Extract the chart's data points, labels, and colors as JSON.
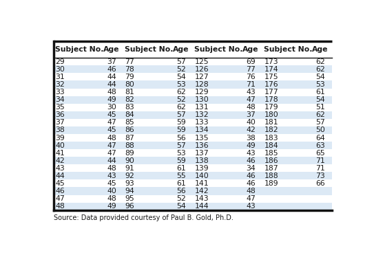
{
  "columns": [
    "Subject No.",
    "Age",
    "Subject No.",
    "Age",
    "Subject No.",
    "Age",
    "Subject No.",
    "Age"
  ],
  "rows": [
    [
      "29",
      "37",
      "77",
      "57",
      "125",
      "69",
      "173",
      "62"
    ],
    [
      "30",
      "46",
      "78",
      "52",
      "126",
      "77",
      "174",
      "62"
    ],
    [
      "31",
      "44",
      "79",
      "54",
      "127",
      "76",
      "175",
      "54"
    ],
    [
      "32",
      "44",
      "80",
      "53",
      "128",
      "71",
      "176",
      "53"
    ],
    [
      "33",
      "48",
      "81",
      "62",
      "129",
      "43",
      "177",
      "61"
    ],
    [
      "34",
      "49",
      "82",
      "52",
      "130",
      "47",
      "178",
      "54"
    ],
    [
      "35",
      "30",
      "83",
      "62",
      "131",
      "48",
      "179",
      "51"
    ],
    [
      "36",
      "45",
      "84",
      "57",
      "132",
      "37",
      "180",
      "62"
    ],
    [
      "37",
      "47",
      "85",
      "59",
      "133",
      "40",
      "181",
      "57"
    ],
    [
      "38",
      "45",
      "86",
      "59",
      "134",
      "42",
      "182",
      "50"
    ],
    [
      "39",
      "48",
      "87",
      "56",
      "135",
      "38",
      "183",
      "64"
    ],
    [
      "40",
      "47",
      "88",
      "57",
      "136",
      "49",
      "184",
      "63"
    ],
    [
      "41",
      "47",
      "89",
      "53",
      "137",
      "43",
      "185",
      "65"
    ],
    [
      "42",
      "44",
      "90",
      "59",
      "138",
      "46",
      "186",
      "71"
    ],
    [
      "43",
      "48",
      "91",
      "61",
      "139",
      "34",
      "187",
      "71"
    ],
    [
      "44",
      "43",
      "92",
      "55",
      "140",
      "46",
      "188",
      "73"
    ],
    [
      "45",
      "45",
      "93",
      "61",
      "141",
      "46",
      "189",
      "66"
    ],
    [
      "46",
      "40",
      "94",
      "56",
      "142",
      "48",
      "",
      ""
    ],
    [
      "47",
      "48",
      "95",
      "52",
      "143",
      "47",
      "",
      ""
    ],
    [
      "48",
      "49",
      "96",
      "54",
      "144",
      "43",
      "",
      ""
    ]
  ],
  "footer": "Source: Data provided courtesy of Paul B. Gold, Ph.D.",
  "row_color_odd": "#ffffff",
  "row_color_even": "#dce9f5",
  "text_color": "#1a1a1a",
  "border_thick": 2.5,
  "border_thin": 1.0,
  "header_fontsize": 7.8,
  "cell_fontsize": 7.8,
  "footer_fontsize": 7.0,
  "col_widths_raw": [
    1.55,
    0.8,
    1.55,
    0.8,
    1.55,
    0.8,
    1.55,
    0.8
  ],
  "figwidth": 5.43,
  "figheight": 3.87,
  "dpi": 100
}
